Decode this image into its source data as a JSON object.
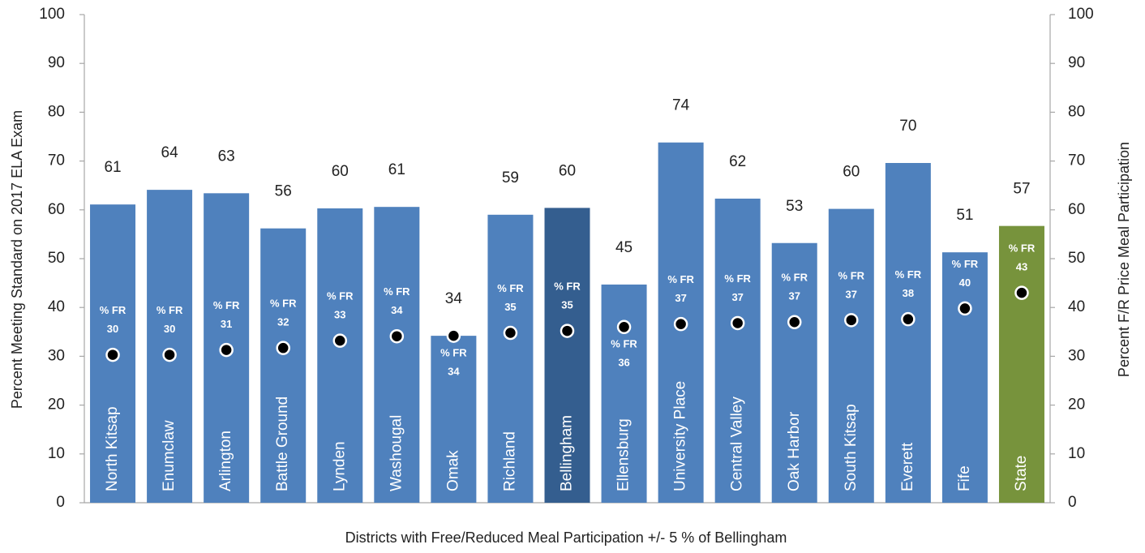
{
  "chart_data": {
    "type": "bar",
    "categories": [
      "North Kitsap",
      "Enumclaw",
      "Arlington",
      "Battle Ground",
      "Lynden",
      "Washougal",
      "Omak",
      "Richland",
      "Bellingham",
      "Ellensburg",
      "University Place",
      "Central Valley",
      "Oak Harbor",
      "South Kitsap",
      "Everett",
      "Fife",
      "State"
    ],
    "series": [
      {
        "type": "bar",
        "colors": [
          "#4f81bd",
          "#4f81bd",
          "#4f81bd",
          "#4f81bd",
          "#4f81bd",
          "#4f81bd",
          "#4f81bd",
          "#4f81bd",
          "#345e8f",
          "#4f81bd",
          "#4f81bd",
          "#4f81bd",
          "#4f81bd",
          "#4f81bd",
          "#4f81bd",
          "#4f81bd",
          "#77933c"
        ],
        "values": [
          61.1,
          64.1,
          63.4,
          56.2,
          60.3,
          60.6,
          34.2,
          59.0,
          60.4,
          44.7,
          73.8,
          62.3,
          53.2,
          60.2,
          69.6,
          51.3,
          56.7
        ],
        "value_labels": [
          "61",
          "64",
          "63",
          "56",
          "60",
          "61",
          "34",
          "59",
          "60",
          "45",
          "74",
          "62",
          "53",
          "60",
          "70",
          "51",
          "57"
        ]
      },
      {
        "type": "scatter",
        "axis": "y2",
        "color": "#000000",
        "label_prefix": "% FR",
        "values": [
          30.3,
          30.3,
          31.3,
          31.7,
          33.2,
          34.1,
          34.2,
          34.8,
          35.2,
          36.0,
          36.6,
          36.8,
          37.0,
          37.4,
          37.6,
          39.8,
          43.0
        ],
        "value_labels": [
          "30",
          "30",
          "31",
          "32",
          "33",
          "34",
          "34",
          "35",
          "35",
          "36",
          "37",
          "37",
          "37",
          "37",
          "38",
          "40",
          "43"
        ]
      }
    ],
    "ylabel": "Percent Meeting Standard on 2017 ELA Exam",
    "y2label": "Percent F/R Price Meal Participation",
    "xlabel": "Districts with Free/Reduced Meal Participation +/- 5 %  of Bellingham",
    "ylim": [
      0,
      100
    ],
    "yticks": [
      0,
      10,
      20,
      30,
      40,
      50,
      60,
      70,
      80,
      90,
      100
    ],
    "y2lim": [
      0,
      100
    ],
    "y2ticks": [
      0,
      10,
      20,
      30,
      40,
      50,
      60,
      70,
      80,
      90,
      100
    ]
  }
}
